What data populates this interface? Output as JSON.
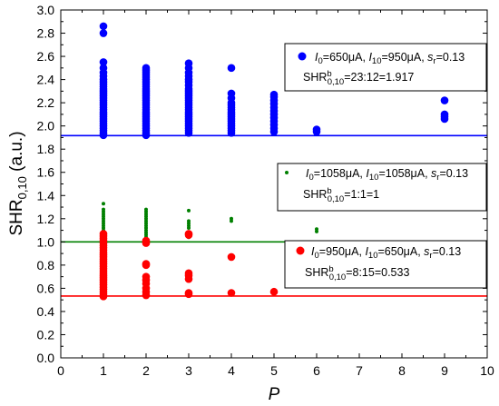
{
  "chart_data": {
    "type": "scatter",
    "title": "",
    "xlabel": "P",
    "ylabel": "SHR",
    "ylabel_sub": "0,10",
    "ylabel_unit": " (a.u.)",
    "xlim": [
      0,
      10
    ],
    "ylim": [
      0.0,
      3.0
    ],
    "x_ticks": [
      "0",
      "1",
      "2",
      "3",
      "4",
      "5",
      "6",
      "7",
      "8",
      "9",
      "10"
    ],
    "y_ticks": [
      "0.0",
      "0.2",
      "0.4",
      "0.6",
      "0.8",
      "1.0",
      "1.2",
      "1.4",
      "1.6",
      "1.8",
      "2.0",
      "2.2",
      "2.4",
      "2.6",
      "2.8",
      "3.0"
    ],
    "grid": false,
    "series": [
      {
        "color": "#0000ff",
        "marker_size": "large",
        "reference_line": 1.917,
        "legend": {
          "p1": "I",
          "s1": "0",
          "p2": "=650μA, ",
          "p3": "I",
          "s3": "10",
          "p4": "=950μA, ",
          "p5": "s",
          "s5": "r",
          "p6": "=0.13",
          "r1": "SHR",
          "rsup": "b",
          "rsub": "0,10",
          "r2": "=23:12=1.917"
        },
        "points": [
          [
            1,
            1.92
          ],
          [
            1,
            1.94
          ],
          [
            1,
            1.96
          ],
          [
            1,
            1.98
          ],
          [
            1,
            2.0
          ],
          [
            1,
            2.02
          ],
          [
            1,
            2.04
          ],
          [
            1,
            2.06
          ],
          [
            1,
            2.08
          ],
          [
            1,
            2.1
          ],
          [
            1,
            2.12
          ],
          [
            1,
            2.14
          ],
          [
            1,
            2.16
          ],
          [
            1,
            2.18
          ],
          [
            1,
            2.2
          ],
          [
            1,
            2.22
          ],
          [
            1,
            2.24
          ],
          [
            1,
            2.26
          ],
          [
            1,
            2.28
          ],
          [
            1,
            2.3
          ],
          [
            1,
            2.32
          ],
          [
            1,
            2.34
          ],
          [
            1,
            2.36
          ],
          [
            1,
            2.38
          ],
          [
            1,
            2.4
          ],
          [
            1,
            2.43
          ],
          [
            1,
            2.46
          ],
          [
            1,
            2.5
          ],
          [
            1,
            2.55
          ],
          [
            1,
            2.8
          ],
          [
            1,
            2.86
          ],
          [
            2,
            1.92
          ],
          [
            2,
            1.94
          ],
          [
            2,
            1.96
          ],
          [
            2,
            1.98
          ],
          [
            2,
            2.0
          ],
          [
            2,
            2.02
          ],
          [
            2,
            2.04
          ],
          [
            2,
            2.06
          ],
          [
            2,
            2.08
          ],
          [
            2,
            2.1
          ],
          [
            2,
            2.12
          ],
          [
            2,
            2.14
          ],
          [
            2,
            2.16
          ],
          [
            2,
            2.18
          ],
          [
            2,
            2.2
          ],
          [
            2,
            2.22
          ],
          [
            2,
            2.24
          ],
          [
            2,
            2.26
          ],
          [
            2,
            2.28
          ],
          [
            2,
            2.3
          ],
          [
            2,
            2.32
          ],
          [
            2,
            2.34
          ],
          [
            2,
            2.36
          ],
          [
            2,
            2.38
          ],
          [
            2,
            2.4
          ],
          [
            2,
            2.42
          ],
          [
            2,
            2.44
          ],
          [
            2,
            2.46
          ],
          [
            2,
            2.48
          ],
          [
            2,
            2.5
          ],
          [
            3,
            1.94
          ],
          [
            3,
            1.96
          ],
          [
            3,
            1.98
          ],
          [
            3,
            2.0
          ],
          [
            3,
            2.02
          ],
          [
            3,
            2.04
          ],
          [
            3,
            2.06
          ],
          [
            3,
            2.08
          ],
          [
            3,
            2.1
          ],
          [
            3,
            2.12
          ],
          [
            3,
            2.14
          ],
          [
            3,
            2.16
          ],
          [
            3,
            2.18
          ],
          [
            3,
            2.2
          ],
          [
            3,
            2.22
          ],
          [
            3,
            2.24
          ],
          [
            3,
            2.26
          ],
          [
            3,
            2.28
          ],
          [
            3,
            2.3
          ],
          [
            3,
            2.32
          ],
          [
            3,
            2.35
          ],
          [
            3,
            2.38
          ],
          [
            3,
            2.4
          ],
          [
            3,
            2.43
          ],
          [
            3,
            2.46
          ],
          [
            3,
            2.5
          ],
          [
            3,
            2.54
          ],
          [
            4,
            1.94
          ],
          [
            4,
            1.96
          ],
          [
            4,
            1.98
          ],
          [
            4,
            2.0
          ],
          [
            4,
            2.02
          ],
          [
            4,
            2.04
          ],
          [
            4,
            2.06
          ],
          [
            4,
            2.08
          ],
          [
            4,
            2.1
          ],
          [
            4,
            2.12
          ],
          [
            4,
            2.14
          ],
          [
            4,
            2.16
          ],
          [
            4,
            2.18
          ],
          [
            4,
            2.2
          ],
          [
            4,
            2.24
          ],
          [
            4,
            2.28
          ],
          [
            4,
            2.5
          ],
          [
            5,
            1.95
          ],
          [
            5,
            1.98
          ],
          [
            5,
            2.01
          ],
          [
            5,
            2.04
          ],
          [
            5,
            2.07
          ],
          [
            5,
            2.1
          ],
          [
            5,
            2.13
          ],
          [
            5,
            2.16
          ],
          [
            5,
            2.19
          ],
          [
            5,
            2.22
          ],
          [
            5,
            2.25
          ],
          [
            5,
            2.27
          ],
          [
            6,
            1.95
          ],
          [
            6,
            1.97
          ],
          [
            9,
            2.06
          ],
          [
            9,
            2.08
          ],
          [
            9,
            2.1
          ],
          [
            9,
            2.22
          ]
        ]
      },
      {
        "color": "#008000",
        "marker_size": "small",
        "reference_line": 1.0,
        "legend": {
          "p1": "I",
          "s1": "0",
          "p2": "=1058μA, ",
          "p3": "I",
          "s3": "10",
          "p4": "=1058μA, ",
          "p5": "s",
          "s5": "r",
          "p6": "=0.13",
          "r1": "SHR",
          "rsup": "b",
          "rsub": "0,10",
          "r2": "=1:1=1"
        },
        "points": [
          [
            1,
            1.0
          ],
          [
            1,
            1.01
          ],
          [
            1,
            1.02
          ],
          [
            1,
            1.03
          ],
          [
            1,
            1.04
          ],
          [
            1,
            1.05
          ],
          [
            1,
            1.06
          ],
          [
            1,
            1.07
          ],
          [
            1,
            1.08
          ],
          [
            1,
            1.1
          ],
          [
            1,
            1.12
          ],
          [
            1,
            1.14
          ],
          [
            1,
            1.16
          ],
          [
            1,
            1.18
          ],
          [
            1,
            1.2
          ],
          [
            1,
            1.22
          ],
          [
            1,
            1.24
          ],
          [
            1,
            1.26
          ],
          [
            1,
            1.28
          ],
          [
            1,
            1.33
          ],
          [
            2,
            1.0
          ],
          [
            2,
            1.02
          ],
          [
            2,
            1.04
          ],
          [
            2,
            1.06
          ],
          [
            2,
            1.08
          ],
          [
            2,
            1.1
          ],
          [
            2,
            1.12
          ],
          [
            2,
            1.14
          ],
          [
            2,
            1.16
          ],
          [
            2,
            1.18
          ],
          [
            2,
            1.2
          ],
          [
            2,
            1.22
          ],
          [
            2,
            1.24
          ],
          [
            2,
            1.26
          ],
          [
            2,
            1.28
          ],
          [
            3,
            1.04
          ],
          [
            3,
            1.06
          ],
          [
            3,
            1.08
          ],
          [
            3,
            1.12
          ],
          [
            3,
            1.14
          ],
          [
            3,
            1.16
          ],
          [
            3,
            1.18
          ],
          [
            3,
            1.27
          ],
          [
            4,
            1.18
          ],
          [
            4,
            1.2
          ],
          [
            6,
            1.09
          ],
          [
            6,
            1.11
          ]
        ]
      },
      {
        "color": "#ff0000",
        "marker_size": "large",
        "reference_line": 0.533,
        "legend": {
          "p1": "I",
          "s1": "0",
          "p2": "=950μA, ",
          "p3": "I",
          "s3": "10",
          "p4": "=650μA, ",
          "p5": "s",
          "s5": "r",
          "p6": "=0.13",
          "r1": "SHR",
          "rsup": "b",
          "rsub": "0,10",
          "r2": "=8:15=0.533"
        },
        "points": [
          [
            1,
            0.53
          ],
          [
            1,
            0.55
          ],
          [
            1,
            0.57
          ],
          [
            1,
            0.59
          ],
          [
            1,
            0.61
          ],
          [
            1,
            0.63
          ],
          [
            1,
            0.65
          ],
          [
            1,
            0.67
          ],
          [
            1,
            0.69
          ],
          [
            1,
            0.71
          ],
          [
            1,
            0.73
          ],
          [
            1,
            0.75
          ],
          [
            1,
            0.77
          ],
          [
            1,
            0.79
          ],
          [
            1,
            0.81
          ],
          [
            1,
            0.83
          ],
          [
            1,
            0.85
          ],
          [
            1,
            0.87
          ],
          [
            1,
            0.89
          ],
          [
            1,
            0.91
          ],
          [
            1,
            0.93
          ],
          [
            1,
            0.95
          ],
          [
            1,
            0.97
          ],
          [
            1,
            0.99
          ],
          [
            1,
            1.01
          ],
          [
            1,
            1.03
          ],
          [
            1,
            1.05
          ],
          [
            1,
            1.07
          ],
          [
            2,
            0.54
          ],
          [
            2,
            0.57
          ],
          [
            2,
            0.6
          ],
          [
            2,
            0.64
          ],
          [
            2,
            0.67
          ],
          [
            2,
            0.7
          ],
          [
            2,
            0.8
          ],
          [
            2,
            0.81
          ],
          [
            2,
            0.99
          ],
          [
            2,
            1.0
          ],
          [
            2,
            1.01
          ],
          [
            3,
            0.55
          ],
          [
            3,
            0.56
          ],
          [
            3,
            0.68
          ],
          [
            3,
            0.71
          ],
          [
            3,
            0.73
          ],
          [
            3,
            1.06
          ],
          [
            3,
            1.07
          ],
          [
            4,
            0.56
          ],
          [
            4,
            0.87
          ],
          [
            5,
            0.57
          ]
        ]
      }
    ]
  }
}
